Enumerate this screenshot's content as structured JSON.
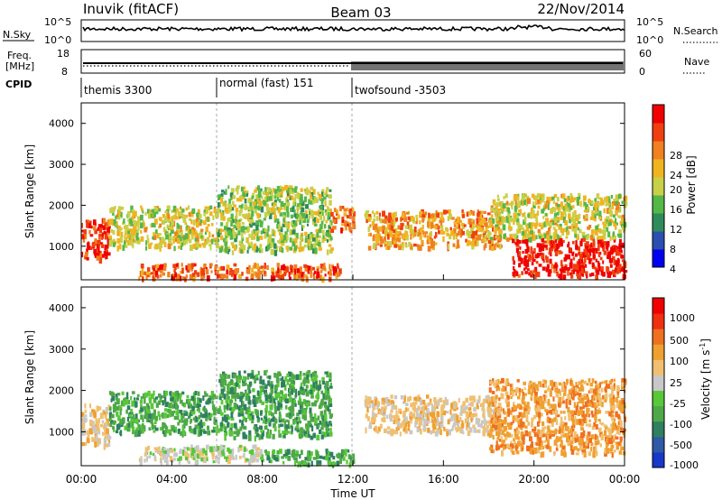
{
  "header": {
    "station": "Inuvik (fitACF)",
    "beam": "Beam 03",
    "date": "22/Nov/2014"
  },
  "noise_panel": {
    "left_label": "N.Sky",
    "right_label": "N.Search",
    "left_ticks": [
      "10^5",
      "10^0"
    ],
    "right_ticks": [
      "10^5",
      "10^0"
    ]
  },
  "freq_panel": {
    "left_label_line1": "Freq.",
    "left_label_line2": "[MHz]",
    "right_label": "Nave",
    "left_ticks": [
      "18",
      "8"
    ],
    "right_ticks": [
      "60",
      "0"
    ]
  },
  "cpid_panel": {
    "label": "CPID",
    "segments": [
      {
        "label": "themis 3300",
        "start_h": 0,
        "end_h": 6
      },
      {
        "label": "normal (fast) 151",
        "start_h": 6,
        "end_h": 12
      },
      {
        "label": "twofsound -3503",
        "start_h": 12,
        "end_h": 24
      }
    ]
  },
  "chart_data": [
    {
      "type": "heatmap",
      "title": "Power",
      "xlabel": "Time UT",
      "ylabel": "Slant Range [km]",
      "xlim": [
        0,
        24
      ],
      "ylim": [
        180,
        4500
      ],
      "x_ticks": [
        "00:00",
        "04:00",
        "08:00",
        "12:00",
        "16:00",
        "20:00",
        "00:00"
      ],
      "y_ticks": [
        1000,
        2000,
        3000,
        4000
      ],
      "colorbar": {
        "label": "Power [dB]",
        "ticks": [
          "4",
          "8",
          "12",
          "16",
          "20",
          "24",
          "28"
        ],
        "range": [
          0,
          30
        ],
        "colors": [
          "#0000f0",
          "#2a4fb0",
          "#2e8c5a",
          "#54b848",
          "#c8d048",
          "#f0b420",
          "#f08020",
          "#f04010",
          "#f00000"
        ]
      },
      "regions": [
        {
          "t0": 0.0,
          "t1": 1.2,
          "r0": 700,
          "r1": 1700,
          "level": 26
        },
        {
          "t0": 1.2,
          "t1": 6.0,
          "r0": 1000,
          "r1": 2000,
          "level": 16
        },
        {
          "t0": 2.5,
          "t1": 11.5,
          "r0": 250,
          "r1": 600,
          "level": 24
        },
        {
          "t0": 6.0,
          "t1": 11.0,
          "r0": 900,
          "r1": 2500,
          "level": 14
        },
        {
          "t0": 11.0,
          "t1": 12.0,
          "r0": 1400,
          "r1": 2000,
          "level": 22
        },
        {
          "t0": 12.5,
          "t1": 18.5,
          "r0": 1000,
          "r1": 1900,
          "level": 20
        },
        {
          "t0": 18.0,
          "t1": 24.0,
          "r0": 1200,
          "r1": 2300,
          "level": 16
        },
        {
          "t0": 19.0,
          "t1": 24.0,
          "r0": 300,
          "r1": 1200,
          "level": 28
        }
      ]
    },
    {
      "type": "heatmap",
      "title": "Velocity",
      "xlabel": "Time UT",
      "ylabel": "Slant Range [km]",
      "xlim": [
        0,
        24
      ],
      "ylim": [
        180,
        4500
      ],
      "x_ticks": [
        "00:00",
        "04:00",
        "08:00",
        "12:00",
        "16:00",
        "20:00",
        "00:00"
      ],
      "y_ticks": [
        1000,
        2000,
        3000,
        4000
      ],
      "colorbar": {
        "label": "Velocity [m s-1]",
        "ticks": [
          "1000",
          "500",
          "100",
          "25",
          "-25",
          "-100",
          "-500",
          "-1000"
        ],
        "colors": [
          "#1838c8",
          "#2e5aa8",
          "#2e8060",
          "#4fa848",
          "#58c838",
          "#c8c8c8",
          "#f0c070",
          "#f0a030",
          "#f07020",
          "#f03010",
          "#f00000"
        ]
      },
      "regions": [
        {
          "t0": 0.0,
          "t1": 1.2,
          "r0": 700,
          "r1": 1700,
          "level": "-100"
        },
        {
          "t0": 1.2,
          "t1": 6.0,
          "r0": 1000,
          "r1": 2000,
          "level": "100"
        },
        {
          "t0": 2.5,
          "t1": 8.0,
          "r0": 300,
          "r1": 700,
          "level": "-25"
        },
        {
          "t0": 6.0,
          "t1": 11.0,
          "r0": 900,
          "r1": 2500,
          "level": "100"
        },
        {
          "t0": 8.0,
          "t1": 12.0,
          "r0": 250,
          "r1": 600,
          "level": "100"
        },
        {
          "t0": 12.5,
          "t1": 18.5,
          "r0": 1000,
          "r1": 1900,
          "level": "-100"
        },
        {
          "t0": 18.0,
          "t1": 24.0,
          "r0": 500,
          "r1": 2300,
          "level": "-500"
        }
      ]
    }
  ]
}
